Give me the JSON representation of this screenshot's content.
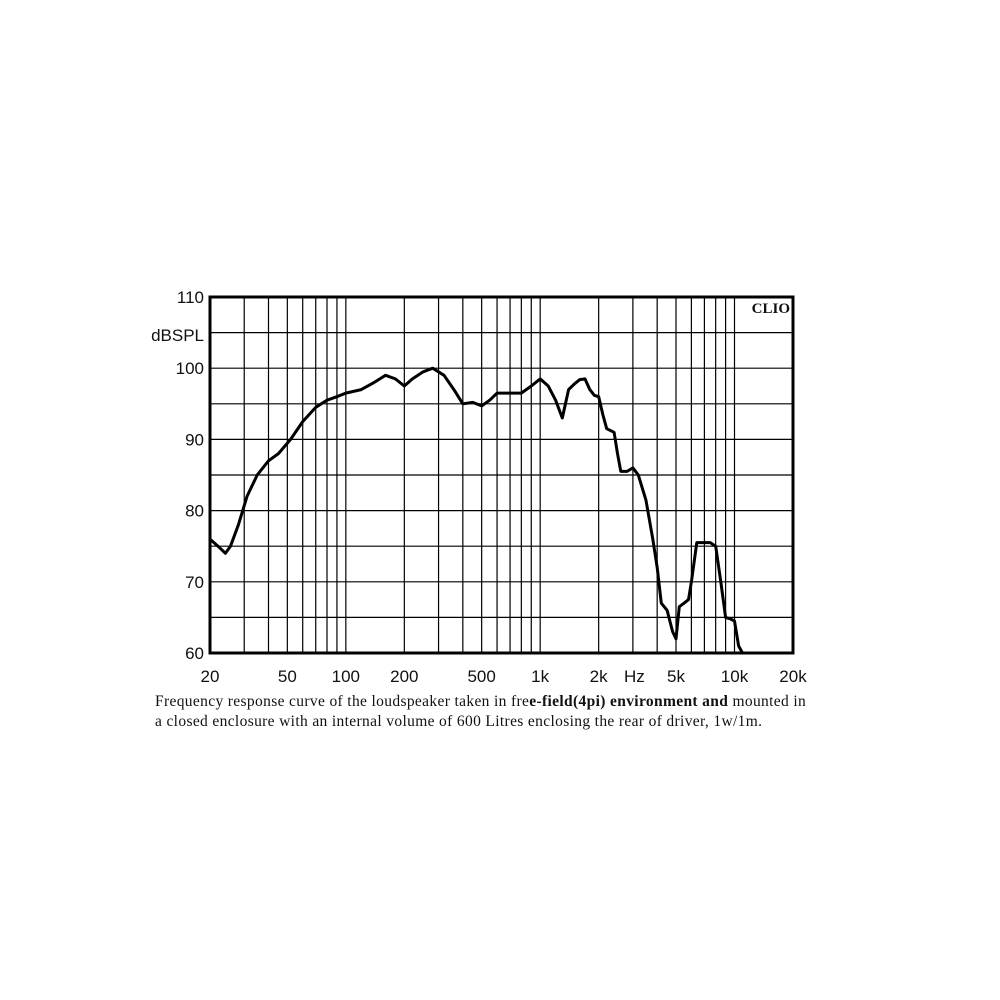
{
  "chart_data": {
    "type": "line",
    "brand_label": "CLIO",
    "ylabel": "dBSPL",
    "xlabel": "Hz",
    "x_scale": "log",
    "xlim": [
      20,
      20000
    ],
    "ylim": [
      60,
      110
    ],
    "grid": true,
    "x_ticks": [
      {
        "value": 20,
        "label": "20"
      },
      {
        "value": 50,
        "label": "50"
      },
      {
        "value": 100,
        "label": "100"
      },
      {
        "value": 200,
        "label": "200"
      },
      {
        "value": 500,
        "label": "500"
      },
      {
        "value": 1000,
        "label": "1k"
      },
      {
        "value": 2000,
        "label": "2k"
      },
      {
        "value": 5000,
        "label": "5k"
      },
      {
        "value": 10000,
        "label": "10k"
      },
      {
        "value": 20000,
        "label": "20k"
      }
    ],
    "y_ticks": [
      {
        "value": 60,
        "label": "60"
      },
      {
        "value": 70,
        "label": "70"
      },
      {
        "value": 80,
        "label": "80"
      },
      {
        "value": 90,
        "label": "90"
      },
      {
        "value": 100,
        "label": "100"
      },
      {
        "value": 110,
        "label": "110"
      }
    ],
    "series": [
      {
        "color": "#000000",
        "x": [
          20,
          22,
          24,
          25.5,
          28,
          31,
          35,
          40,
          45,
          52,
          60,
          70,
          80,
          90,
          100,
          120,
          140,
          160,
          180,
          200,
          220,
          250,
          280,
          320,
          360,
          400,
          450,
          500,
          550,
          600,
          650,
          700,
          800,
          900,
          1000,
          1100,
          1200,
          1300,
          1400,
          1500,
          1600,
          1700,
          1800,
          1900,
          2000,
          2100,
          2200,
          2400,
          2500,
          2600,
          2800,
          3000,
          3200,
          3500,
          3800,
          4000,
          4200,
          4500,
          4800,
          5000,
          5200,
          5500,
          5800,
          6000,
          6400,
          6800,
          7000,
          7500,
          8000,
          8500,
          9000,
          9500,
          10000,
          10500,
          11000
        ],
        "y": [
          76,
          75,
          74,
          75,
          78,
          82,
          85,
          87,
          88,
          90,
          92.5,
          94.5,
          95.5,
          96,
          96.5,
          97,
          98,
          99,
          98.5,
          97.5,
          98.5,
          99.5,
          100,
          99,
          97,
          95,
          95.2,
          94.7,
          95.5,
          96.5,
          96.5,
          96.5,
          96.5,
          97.5,
          98.5,
          97.5,
          95.5,
          93,
          97,
          97.8,
          98.4,
          98.5,
          97,
          96.2,
          96,
          93.5,
          91.5,
          91,
          88,
          85.5,
          85.5,
          86,
          85,
          81.5,
          76,
          72,
          67,
          66,
          63,
          62,
          66.5,
          67,
          67.5,
          70,
          75.5,
          75.5,
          75.5,
          75.5,
          75,
          70,
          65,
          64.8,
          64.5,
          61,
          60
        ]
      }
    ]
  },
  "caption": {
    "line1_a": "Frequency response curve of the loudspeaker taken in fre",
    "line1_b": "e-field(4pi) environment and",
    "line1_c": " mounted in",
    "line2": "a closed enclosure  with an internal volume of 600 Litres enclosing the rear of driver, 1w/1m."
  }
}
